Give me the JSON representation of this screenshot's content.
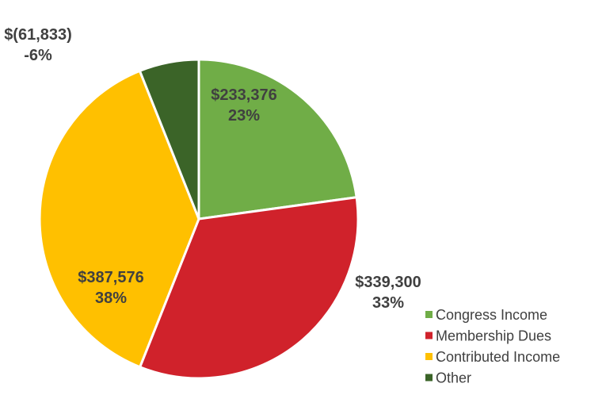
{
  "chart_data": {
    "type": "pie",
    "title": "",
    "legend_position": "bottom-right",
    "slices": [
      {
        "name": "Congress Income",
        "value": 233376,
        "value_label": "$233,376",
        "percent_label": "23%",
        "color": "#70AD47"
      },
      {
        "name": "Membership Dues",
        "value": 339300,
        "value_label": "$339,300",
        "percent_label": "33%",
        "color": "#D0222B"
      },
      {
        "name": "Contributed Income",
        "value": 387576,
        "value_label": "$387,576",
        "percent_label": "38%",
        "color": "#FFC000"
      },
      {
        "name": "Other",
        "value": -61833,
        "value_label": "$(61,833)",
        "percent_label": "-6%",
        "color": "#3B6428"
      }
    ]
  }
}
